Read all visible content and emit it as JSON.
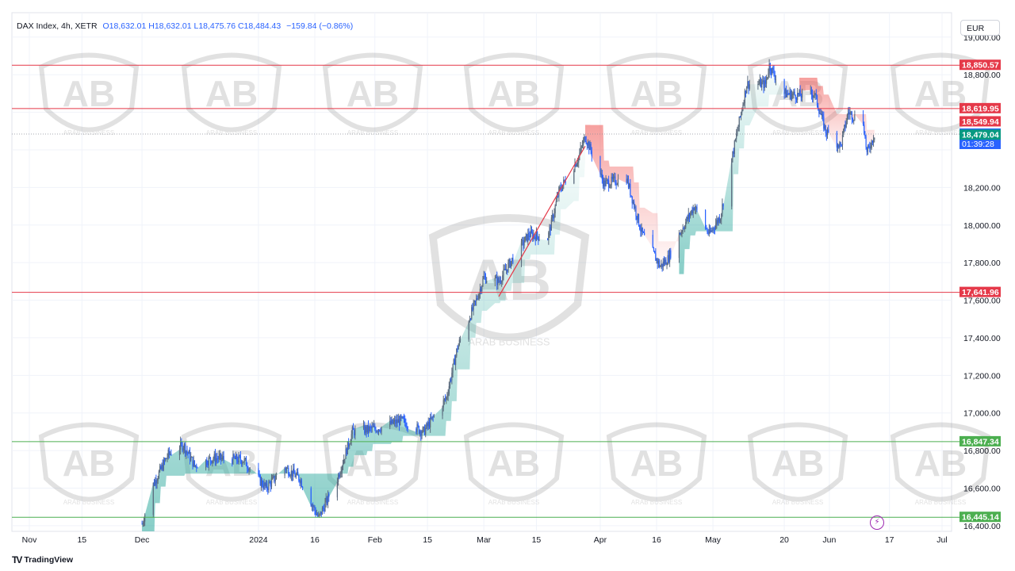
{
  "header": {
    "symbol": "DAX Index, 4h, XETR",
    "ohlc": "O18,632.01 H18,632.01 L18,475.76 C18,484.43",
    "change": "−159.84 (−0.86%)",
    "currency": "EUR"
  },
  "watermark": {
    "brand_text": "ARAB BUSINESS"
  },
  "footer": {
    "brand": "TradingView",
    "logo": "tv-logo-icon"
  },
  "colors": {
    "candle_up": "#5b6b7e",
    "candle_down": "#2962ff",
    "resistance": "#e53949",
    "support": "#4caf50",
    "cloud_bull": "#26a69a",
    "cloud_bear": "#ef5350"
  },
  "chart_data": {
    "type": "candlestick",
    "title": "DAX Index, 4h, XETR",
    "x_axis": {
      "type": "date",
      "tick_labels": [
        "Nov",
        "15",
        "Dec",
        "2024",
        "16",
        "Feb",
        "15",
        "Mar",
        "15",
        "Apr",
        "16",
        "May",
        "20",
        "Jun",
        "17",
        "Jul"
      ]
    },
    "y_axis": {
      "ylim": [
        16370,
        19130
      ],
      "tick_labels": [
        "19,000.00",
        "18,800.00",
        "18,200.00",
        "18,000.00",
        "17,800.00",
        "17,600.00",
        "17,400.00",
        "17,200.00",
        "17,000.00",
        "16,800.00",
        "16,600.00",
        "16,400.00"
      ]
    },
    "grid": true,
    "price_path": [
      [
        "2023-12-01",
        16410
      ],
      [
        "2023-12-04",
        16620
      ],
      [
        "2023-12-08",
        16780
      ],
      [
        "2023-12-12",
        16830
      ],
      [
        "2023-12-15",
        16720
      ],
      [
        "2023-12-20",
        16760
      ],
      [
        "2023-12-28",
        16750
      ],
      [
        "2024-01-03",
        16600
      ],
      [
        "2024-01-08",
        16710
      ],
      [
        "2024-01-12",
        16650
      ],
      [
        "2024-01-17",
        16440
      ],
      [
        "2024-01-22",
        16650
      ],
      [
        "2024-01-26",
        16900
      ],
      [
        "2024-02-02",
        16920
      ],
      [
        "2024-02-08",
        16960
      ],
      [
        "2024-02-14",
        16900
      ],
      [
        "2024-02-20",
        17080
      ],
      [
        "2024-02-23",
        17350
      ],
      [
        "2024-02-28",
        17600
      ],
      [
        "2024-03-01",
        17720
      ],
      [
        "2024-03-05",
        17700
      ],
      [
        "2024-03-08",
        17800
      ],
      [
        "2024-03-13",
        17950
      ],
      [
        "2024-03-18",
        17930
      ],
      [
        "2024-03-21",
        18180
      ],
      [
        "2024-03-26",
        18350
      ],
      [
        "2024-03-28",
        18470
      ],
      [
        "2024-04-02",
        18220
      ],
      [
        "2024-04-08",
        18250
      ],
      [
        "2024-04-12",
        17960
      ],
      [
        "2024-04-17",
        17780
      ],
      [
        "2024-04-19",
        17820
      ],
      [
        "2024-04-22",
        17950
      ],
      [
        "2024-04-26",
        18100
      ],
      [
        "2024-04-30",
        17950
      ],
      [
        "2024-05-03",
        18050
      ],
      [
        "2024-05-07",
        18450
      ],
      [
        "2024-05-10",
        18750
      ],
      [
        "2024-05-15",
        18750
      ],
      [
        "2024-05-16",
        18850
      ],
      [
        "2024-05-20",
        18700
      ],
      [
        "2024-05-24",
        18690
      ],
      [
        "2024-05-28",
        18700
      ],
      [
        "2024-05-31",
        18500
      ],
      [
        "2024-06-04",
        18420
      ],
      [
        "2024-06-06",
        18600
      ],
      [
        "2024-06-10",
        18550
      ],
      [
        "2024-06-11",
        18380
      ],
      [
        "2024-06-13",
        18484.43
      ]
    ],
    "cloud_indicator": {
      "bull_segments": [
        [
          "2023-11-25",
          "2024-03-28"
        ],
        [
          "2024-04-22",
          "2024-05-24"
        ]
      ],
      "bear_segments": [
        [
          "2024-03-28",
          "2024-04-22"
        ],
        [
          "2024-05-24",
          "2024-06-13"
        ]
      ]
    },
    "trendline": {
      "from": [
        "2024-03-05",
        17620
      ],
      "to": [
        "2024-03-28",
        18420
      ]
    },
    "horizontal_levels": [
      {
        "value": 18850.57,
        "label": "18,850.57",
        "kind": "resistance"
      },
      {
        "value": 18619.95,
        "label": "18,619.95",
        "kind": "resistance"
      },
      {
        "value": 17641.96,
        "label": "17,641.96",
        "kind": "resistance"
      },
      {
        "value": 16847.34,
        "label": "16,847.34",
        "kind": "support"
      },
      {
        "value": 16445.14,
        "label": "16,445.14",
        "kind": "support"
      }
    ],
    "price_labels": [
      {
        "value": 18549.94,
        "label": "18,549.94",
        "kind": "bear"
      },
      {
        "value": 18484.43,
        "label": "18,484.43",
        "sub": "01:39:28",
        "kind": "last"
      },
      {
        "value": 18479.04,
        "label": "18,479.04",
        "kind": "bull"
      }
    ]
  }
}
